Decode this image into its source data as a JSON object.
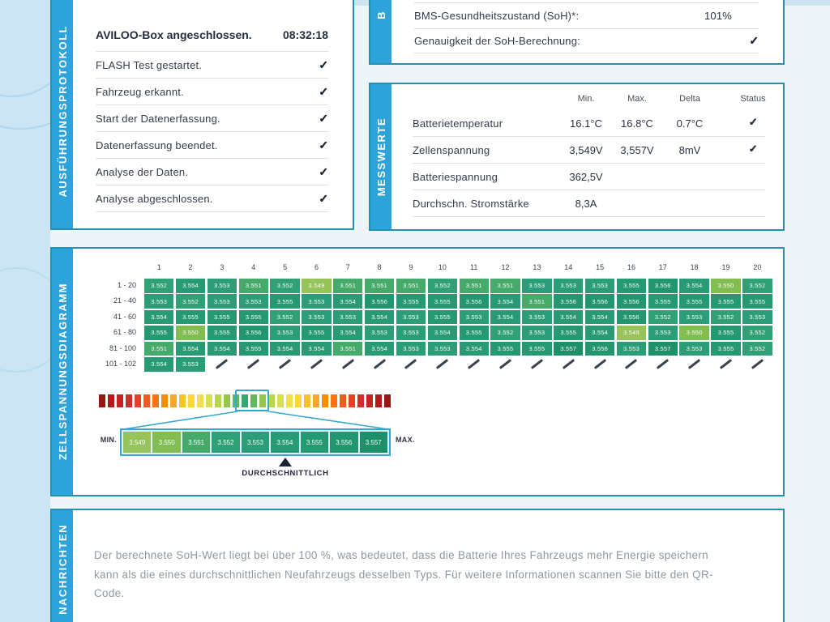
{
  "report": {
    "protocol": {
      "sidebar_label": "AUSFÜHRUNGSPROTOKOLL",
      "title": "AVILOO-Box angeschlossen.",
      "title_time": "08:32:18",
      "steps": [
        "FLASH Test gestartet.",
        "Fahrzeug erkannt.",
        "Start der Datenerfassung.",
        "Datenerfassung beendet.",
        "Analyse der Daten.",
        "Analyse abgeschlossen."
      ],
      "check_glyph": "✓"
    },
    "bms": {
      "sidebar_label": "B",
      "soh_label": "BMS-Gesundheitszustand (SoH)*:",
      "soh_value": "101%",
      "accuracy_label": "Genauigkeit der SoH-Berechnung:",
      "accuracy_check": "✓"
    },
    "messwerte": {
      "sidebar_label": "MESSWERTE",
      "headers": [
        "Min.",
        "Max.",
        "Delta",
        "Status"
      ],
      "rows": [
        {
          "label": "Batterietemperatur",
          "min": "16.1°C",
          "max": "16.8°C",
          "delta": "0.7°C",
          "status": "✓"
        },
        {
          "label": "Zellenspannung",
          "min": "3,549V",
          "max": "3,557V",
          "delta": "8mV",
          "status": "✓"
        },
        {
          "label": "Batteriespannung",
          "min": "362,5V",
          "max": "",
          "delta": "",
          "status": ""
        },
        {
          "label": "Durchschn. Stromstärke",
          "min": "8,3A",
          "max": "",
          "delta": "",
          "status": ""
        }
      ]
    },
    "messages": {
      "sidebar_label": "NACHRICHTEN",
      "text": "Der berechnete SoH-Wert liegt bei über 100 %, was bedeutet, dass die Batterie Ihres Fahrzeugs mehr Energie speichern kann als die eines durchschnittlichen Neufahrzeugs desselben Typs. Für weitere Informationen scannen Sie bitte den QR-Code."
    }
  },
  "chart_data": {
    "type": "heatmap",
    "title": "ZELLSPANNUNGSDIAGRAMM",
    "unit": "V",
    "columns": [
      "1",
      "2",
      "3",
      "4",
      "5",
      "6",
      "7",
      "8",
      "9",
      "10",
      "11",
      "12",
      "13",
      "14",
      "15",
      "16",
      "17",
      "18",
      "19",
      "20"
    ],
    "row_labels": [
      "1 - 20",
      "21 - 40",
      "41 - 60",
      "61 - 80",
      "81 - 100",
      "101 - 102"
    ],
    "rows": [
      [
        "3.552",
        "3.554",
        "3.553",
        "3.551",
        "3.552",
        "3.549",
        "3.551",
        "3.551",
        "3.551",
        "3.552",
        "3.551",
        "3.551",
        "3.553",
        "3.553",
        "3.553",
        "3.555",
        "3.556",
        "3.554",
        "3.550",
        "3.552"
      ],
      [
        "3.553",
        "3.552",
        "3.553",
        "3.553",
        "3.555",
        "3.553",
        "3.554",
        "3.556",
        "3.555",
        "3.555",
        "3.556",
        "3.554",
        "3.551",
        "3.556",
        "3.556",
        "3.556",
        "3.555",
        "3.555",
        "3.555",
        "3.555"
      ],
      [
        "3.554",
        "3.555",
        "3.555",
        "3.555",
        "3.552",
        "3.553",
        "3.553",
        "3.554",
        "3.553",
        "3.555",
        "3.553",
        "3.554",
        "3.553",
        "3.554",
        "3.554",
        "3.556",
        "3.552",
        "3.553",
        "3.552",
        "3.553"
      ],
      [
        "3.555",
        "3.550",
        "3.555",
        "3.556",
        "3.553",
        "3.555",
        "3.554",
        "3.553",
        "3.553",
        "3.554",
        "3.555",
        "3.552",
        "3.553",
        "3.555",
        "3.554",
        "3.549",
        "3.553",
        "3.550",
        "3.555",
        "3.552"
      ],
      [
        "3.551",
        "3.554",
        "3.554",
        "3.555",
        "3.554",
        "3.554",
        "3.551",
        "3.554",
        "3.553",
        "3.553",
        "3.554",
        "3.555",
        "3.555",
        "3.557",
        "3.556",
        "3.553",
        "3.557",
        "3.553",
        "3.555",
        "3.552"
      ],
      [
        "3.554",
        "3.553"
      ]
    ],
    "value_colors": {
      "3.549": "#96c35a",
      "3.550": "#82bd52",
      "3.551": "#46aa6a",
      "3.552": "#30a077",
      "3.553": "#2b9e79",
      "3.554": "#289b76",
      "3.555": "#259972",
      "3.556": "#22976f",
      "3.557": "#1e9069"
    },
    "gradient_half": [
      "#9e1313",
      "#b51a1a",
      "#c62222",
      "#d32c2c",
      "#e0422a",
      "#ee5a21",
      "#f97316",
      "#fb8d00",
      "#f9a825",
      "#fbc02d",
      "#fdd835",
      "#f2df4e",
      "#d8de55",
      "#b8d54f",
      "#93c74f",
      "#62b95d",
      "#35a86f"
    ],
    "legend": {
      "min_label": "MIN.",
      "max_label": "MAX.",
      "values": [
        "3.549",
        "3.550",
        "3.551",
        "3.552",
        "3.553",
        "3.554",
        "3.555",
        "3.556",
        "3.557"
      ],
      "avg_value": "3.554",
      "avg_label": "DURCHSCHNITTLICH"
    },
    "value_range": [
      3.549,
      3.557
    ]
  }
}
